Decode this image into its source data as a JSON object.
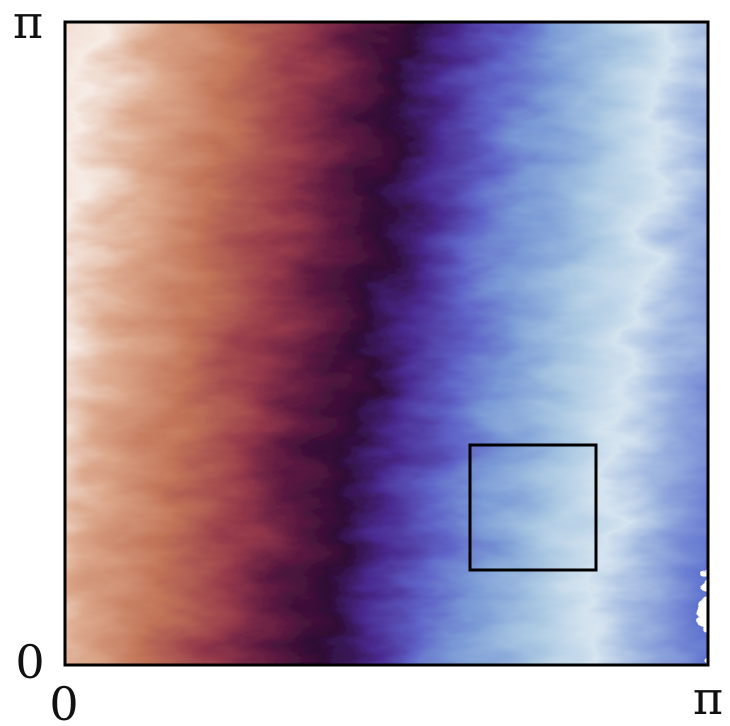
{
  "axes": {
    "y_labels": [
      "π",
      "0"
    ],
    "x_labels": [
      "0",
      "π"
    ]
  }
}
